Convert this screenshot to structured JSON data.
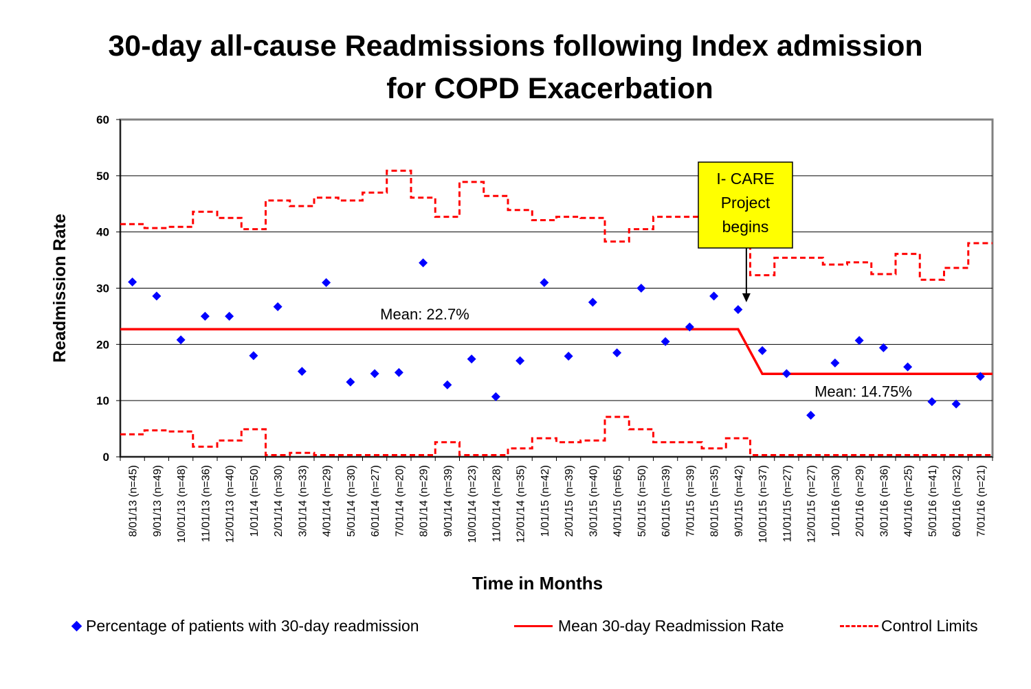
{
  "chart_data": {
    "type": "scatter",
    "title_line1": "30-day all-cause Readmissions following Index admission",
    "title_line2": "for COPD Exacerbation",
    "xlabel": "Time in Months",
    "ylabel": "Readmission Rate",
    "ylim": [
      0,
      60
    ],
    "yticks": [
      0,
      10,
      20,
      30,
      40,
      50,
      60
    ],
    "grid": true,
    "legend_position": "bottom",
    "categories": [
      "8/01/13 (n=45)",
      "9/01/13 (n=49)",
      "10/01/13 (n=48)",
      "11/01/13 (n=36)",
      "12/01/13 (n=40)",
      "1/01/14 (n=50)",
      "2/01/14 (n=30)",
      "3/01/14 (n=33)",
      "4/01/14 (n=29)",
      "5/01/14 (n=30)",
      "6/01/14 (n=27)",
      "7/01/14 (n=20)",
      "8/01/14 (n=29)",
      "9/01/14 (n=39)",
      "10/01/14 (n=23)",
      "11/01/14 (n=28)",
      "12/01/14 (n=35)",
      "1/01/15 (n=42)",
      "2/01/15 (n=39)",
      "3/01/15 (n=40)",
      "4/01/15 (n=65)",
      "5/01/15 (n=50)",
      "6/01/15 (n=39)",
      "7/01/15 (n=39)",
      "8/01/15 (n=35)",
      "9/01/15 (n=42)",
      "10/01/15 (n=37)",
      "11/01/15 (n=27)",
      "12/01/15 (n=27)",
      "1/01/16 (n=30)",
      "2/01/16 (n=29)",
      "3/01/16 (n=36)",
      "4/01/16 (n=25)",
      "5/01/16 (n=41)",
      "6/01/16 (n=32)",
      "7/01/16 (n=21)"
    ],
    "series": [
      {
        "name": "Percentage of patients with 30-day readmission",
        "style": "diamond",
        "color": "#0000ff",
        "values": [
          31.1,
          28.6,
          20.8,
          25.0,
          25.0,
          18.0,
          26.7,
          15.2,
          31.0,
          13.3,
          14.8,
          15.0,
          34.5,
          12.8,
          17.4,
          10.7,
          17.1,
          31.0,
          17.9,
          27.5,
          18.5,
          30.0,
          20.5,
          23.1,
          28.6,
          26.2,
          18.9,
          14.8,
          7.4,
          16.7,
          20.7,
          19.4,
          16.0,
          9.8,
          9.4,
          14.3
        ]
      },
      {
        "name": "Mean 30-day Readmission Rate",
        "style": "solid",
        "color": "#ff0000",
        "values": [
          22.7,
          22.7,
          22.7,
          22.7,
          22.7,
          22.7,
          22.7,
          22.7,
          22.7,
          22.7,
          22.7,
          22.7,
          22.7,
          22.7,
          22.7,
          22.7,
          22.7,
          22.7,
          22.7,
          22.7,
          22.7,
          22.7,
          22.7,
          22.7,
          22.7,
          22.7,
          14.75,
          14.75,
          14.75,
          14.75,
          14.75,
          14.75,
          14.75,
          14.75,
          14.75,
          14.75
        ]
      },
      {
        "name": "Control Limits",
        "style": "dashed",
        "color": "#ff0000",
        "upper": [
          41.4,
          40.7,
          40.9,
          43.6,
          42.5,
          40.5,
          45.6,
          44.6,
          46.1,
          45.6,
          47.0,
          50.9,
          46.1,
          42.7,
          48.9,
          46.4,
          43.9,
          42.1,
          42.7,
          42.5,
          38.3,
          40.5,
          42.7,
          42.7,
          43.9,
          42.1,
          32.3,
          35.4,
          35.4,
          34.2,
          34.6,
          32.5,
          36.1,
          31.5,
          33.6,
          38.0
        ],
        "lower": [
          4.0,
          4.7,
          4.5,
          1.8,
          2.9,
          4.9,
          0.3,
          0.7,
          0.3,
          0.3,
          0.3,
          0.3,
          0.3,
          2.6,
          0.3,
          0.3,
          1.5,
          3.3,
          2.6,
          2.9,
          7.1,
          4.9,
          2.6,
          2.6,
          1.5,
          3.3,
          0.3,
          0.3,
          0.3,
          0.3,
          0.3,
          0.3,
          0.3,
          0.3,
          0.3,
          0.3
        ]
      }
    ],
    "annotations": {
      "mean_before": "Mean: 22.7%",
      "mean_after": "Mean: 14.75%",
      "callout_lines": [
        "I- CARE",
        "Project",
        "begins"
      ],
      "callout_points_to": "9/01/15 (n=42)"
    }
  },
  "legend": {
    "item1": "Percentage of patients with 30-day readmission",
    "item2": "Mean 30-day Readmission Rate",
    "item3": "Control Limits"
  },
  "colors": {
    "marker": "#0000ff",
    "line": "#ff0000",
    "callout_fill": "#ffff00"
  }
}
